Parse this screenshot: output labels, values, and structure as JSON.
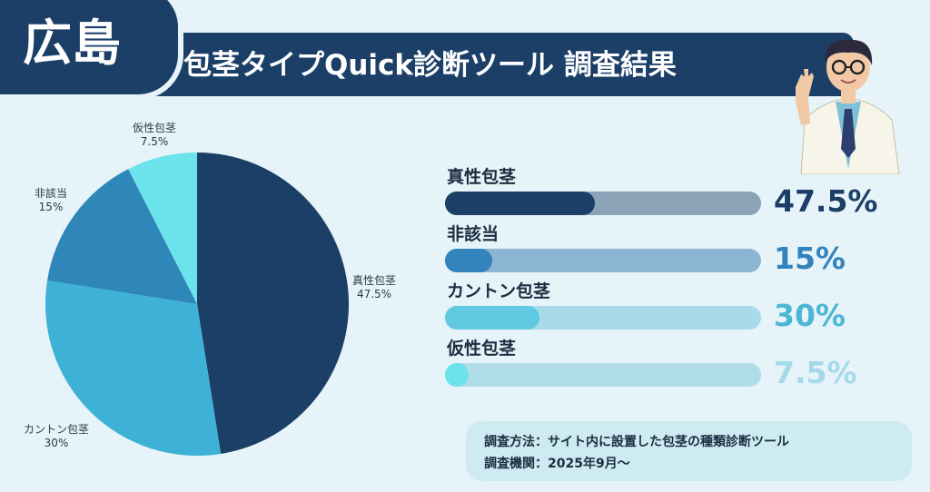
{
  "header": {
    "region": "広島",
    "title": "包茎タイプQuick診断ツール 調査結果"
  },
  "chart_data": {
    "type": "pie",
    "title": "",
    "slices": [
      {
        "label": "真性包茎",
        "value": 47.5,
        "display": "47.5%",
        "color": "#1b3f67"
      },
      {
        "label": "カントン包茎",
        "value": 30,
        "display": "30%",
        "color": "#3eb2d6"
      },
      {
        "label": "非該当",
        "value": 15,
        "display": "15%",
        "color": "#2f86b8"
      },
      {
        "label": "仮性包茎",
        "value": 7.5,
        "display": "7.5%",
        "color": "#6be3ea"
      }
    ]
  },
  "bars": [
    {
      "label": "真性包茎",
      "value": 0.475,
      "pct": "47.5%",
      "fill": "#1b3f67",
      "track": "#8aa3b7",
      "text": "#1b3f67"
    },
    {
      "label": "非該当",
      "value": 0.15,
      "pct": "15%",
      "fill": "#3383bd",
      "track": "#8cb5d4",
      "text": "#3383bd"
    },
    {
      "label": "カントン包茎",
      "value": 0.3,
      "pct": "30%",
      "fill": "#5ec9e1",
      "track": "#a7dbe9",
      "text": "#4cb7d3"
    },
    {
      "label": "仮性包茎",
      "value": 0.075,
      "pct": "7.5%",
      "fill": "#6be3ea",
      "track": "#b1dcea",
      "text": "#a4d9ea"
    }
  ],
  "note": {
    "method": "調査方法：サイト内に設置した包茎の種類診断ツール",
    "period": "調査機関：2025年9月〜"
  },
  "icons": {
    "doctor": "doctor-illustration-icon"
  }
}
